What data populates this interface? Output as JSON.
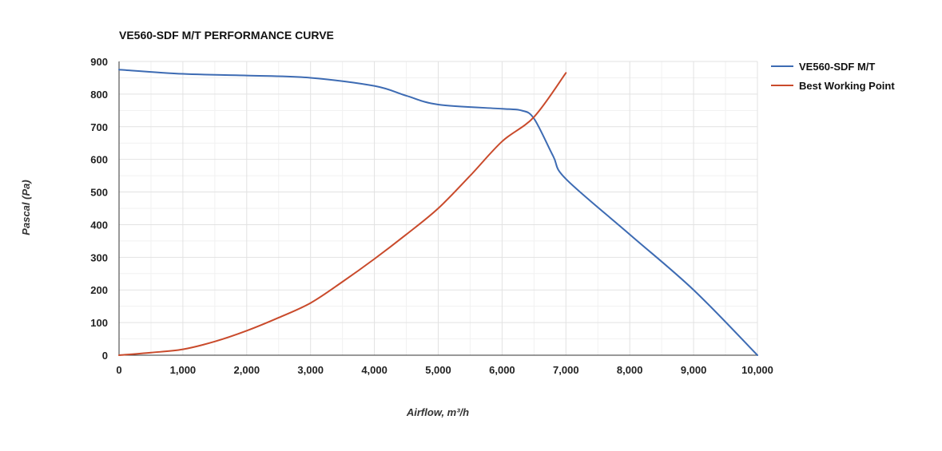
{
  "chart_data": {
    "type": "line",
    "title": "VE560-SDF M/T PERFORMANCE CURVE",
    "xlabel": "Airflow, m³/h",
    "ylabel": "Pascal (Pa)",
    "xlim": [
      0,
      10000
    ],
    "ylim": [
      0,
      900
    ],
    "x_ticks": [
      0,
      1000,
      2000,
      3000,
      4000,
      5000,
      6000,
      7000,
      8000,
      9000,
      10000
    ],
    "x_tick_labels": [
      "0",
      "1,000",
      "2,000",
      "3,000",
      "4,000",
      "5,000",
      "6,000",
      "7,000",
      "8,000",
      "9,000",
      "10,000"
    ],
    "y_ticks": [
      0,
      100,
      200,
      300,
      400,
      500,
      600,
      700,
      800,
      900
    ],
    "y_tick_labels": [
      "0",
      "100",
      "200",
      "300",
      "400",
      "500",
      "600",
      "700",
      "800",
      "900"
    ],
    "grid": true,
    "legend_position": "right",
    "series": [
      {
        "name": "VE560-SDF M/T",
        "color": "#3d6bb3",
        "x": [
          0,
          1000,
          2000,
          3000,
          4000,
          4500,
          5000,
          6000,
          6300,
          6500,
          6800,
          7000,
          8000,
          9000,
          10000
        ],
        "y": [
          875,
          862,
          857,
          850,
          825,
          795,
          768,
          755,
          750,
          725,
          610,
          540,
          370,
          200,
          0
        ]
      },
      {
        "name": "Best Working Point",
        "color": "#c94a2b",
        "x": [
          0,
          500,
          1000,
          1500,
          2000,
          2500,
          3000,
          3500,
          4000,
          4500,
          5000,
          5500,
          6000,
          6500,
          7000
        ],
        "y": [
          0,
          8,
          18,
          42,
          75,
          115,
          160,
          225,
          295,
          370,
          450,
          550,
          655,
          730,
          865
        ]
      }
    ]
  }
}
